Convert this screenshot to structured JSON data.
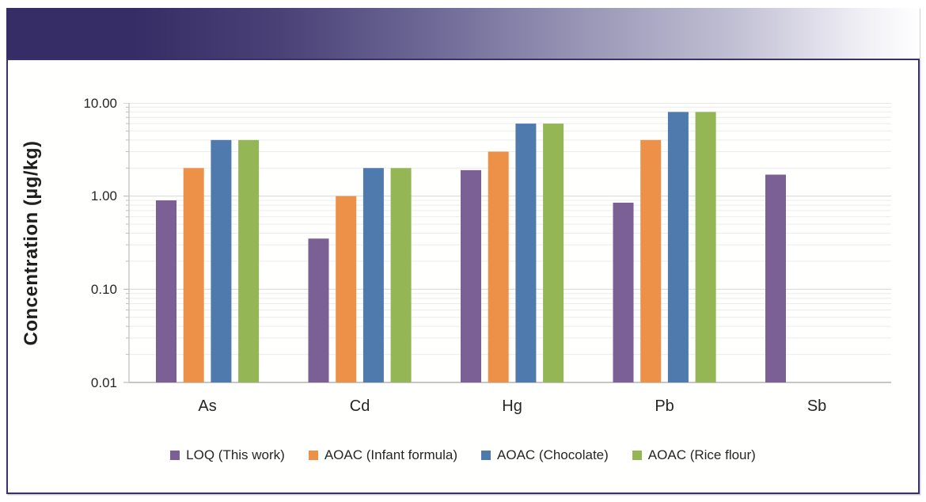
{
  "banner": {
    "gradient_start_color": "#372d66",
    "gradient_end_color": "#ffffff"
  },
  "frame": {
    "border_color": "#3a3169"
  },
  "chart_data": {
    "type": "bar",
    "title": "",
    "xlabel": "",
    "ylabel": "Concentration (µg/kg)",
    "y_scale": "log",
    "ylim": [
      0.01,
      10
    ],
    "grid": true,
    "legend_position": "bottom",
    "ytick_labels": [
      "10.00",
      "1.00",
      "0.10",
      "0.01"
    ],
    "ytick_values": [
      10,
      1,
      0.1,
      0.01
    ],
    "categories": [
      "As",
      "Cd",
      "Hg",
      "Pb",
      "Sb"
    ],
    "series": [
      {
        "name": "LOQ (This work)",
        "color": "#7B6096",
        "values": [
          0.9,
          0.35,
          1.9,
          0.85,
          1.7
        ]
      },
      {
        "name": "AOAC (Infant formula)",
        "color": "#ED9149",
        "values": [
          2,
          1,
          3,
          4,
          null
        ]
      },
      {
        "name": "AOAC (Chocolate)",
        "color": "#4F7AAD",
        "values": [
          4,
          2,
          6,
          8,
          null
        ]
      },
      {
        "name": "AOAC (Rice flour)",
        "color": "#94B655",
        "values": [
          4,
          2,
          6,
          8,
          null
        ]
      }
    ],
    "colors": {
      "major_gridline": "#d9d9d9",
      "minor_gridline": "#ececec",
      "axis_line": "#c6c6c6",
      "tick_mark": "#bdbdbd",
      "text": "#262626"
    }
  }
}
